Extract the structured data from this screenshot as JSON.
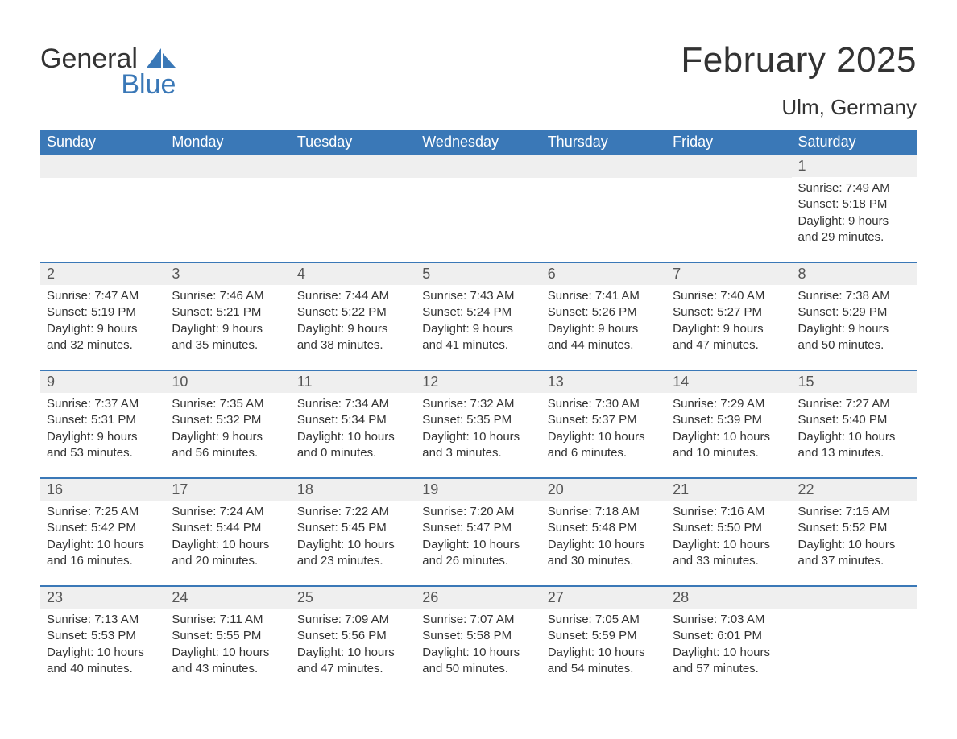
{
  "brand": {
    "part1": "General",
    "part2": "Blue",
    "accent_color": "#3a78b7"
  },
  "title": "February 2025",
  "location": "Ulm, Germany",
  "colors": {
    "header_bg": "#3a78b7",
    "header_text": "#ffffff",
    "daynum_bg": "#efefef",
    "text": "#333333",
    "page_bg": "#ffffff",
    "divider": "#3a78b7"
  },
  "typography": {
    "title_fontsize": 44,
    "location_fontsize": 26,
    "header_fontsize": 18,
    "daynum_fontsize": 18,
    "info_fontsize": 15,
    "logo_fontsize": 34
  },
  "day_names": [
    "Sunday",
    "Monday",
    "Tuesday",
    "Wednesday",
    "Thursday",
    "Friday",
    "Saturday"
  ],
  "weeks": [
    [
      null,
      null,
      null,
      null,
      null,
      null,
      {
        "n": "1",
        "sunrise": "Sunrise: 7:49 AM",
        "sunset": "Sunset: 5:18 PM",
        "daylight": "Daylight: 9 hours and 29 minutes."
      }
    ],
    [
      {
        "n": "2",
        "sunrise": "Sunrise: 7:47 AM",
        "sunset": "Sunset: 5:19 PM",
        "daylight": "Daylight: 9 hours and 32 minutes."
      },
      {
        "n": "3",
        "sunrise": "Sunrise: 7:46 AM",
        "sunset": "Sunset: 5:21 PM",
        "daylight": "Daylight: 9 hours and 35 minutes."
      },
      {
        "n": "4",
        "sunrise": "Sunrise: 7:44 AM",
        "sunset": "Sunset: 5:22 PM",
        "daylight": "Daylight: 9 hours and 38 minutes."
      },
      {
        "n": "5",
        "sunrise": "Sunrise: 7:43 AM",
        "sunset": "Sunset: 5:24 PM",
        "daylight": "Daylight: 9 hours and 41 minutes."
      },
      {
        "n": "6",
        "sunrise": "Sunrise: 7:41 AM",
        "sunset": "Sunset: 5:26 PM",
        "daylight": "Daylight: 9 hours and 44 minutes."
      },
      {
        "n": "7",
        "sunrise": "Sunrise: 7:40 AM",
        "sunset": "Sunset: 5:27 PM",
        "daylight": "Daylight: 9 hours and 47 minutes."
      },
      {
        "n": "8",
        "sunrise": "Sunrise: 7:38 AM",
        "sunset": "Sunset: 5:29 PM",
        "daylight": "Daylight: 9 hours and 50 minutes."
      }
    ],
    [
      {
        "n": "9",
        "sunrise": "Sunrise: 7:37 AM",
        "sunset": "Sunset: 5:31 PM",
        "daylight": "Daylight: 9 hours and 53 minutes."
      },
      {
        "n": "10",
        "sunrise": "Sunrise: 7:35 AM",
        "sunset": "Sunset: 5:32 PM",
        "daylight": "Daylight: 9 hours and 56 minutes."
      },
      {
        "n": "11",
        "sunrise": "Sunrise: 7:34 AM",
        "sunset": "Sunset: 5:34 PM",
        "daylight": "Daylight: 10 hours and 0 minutes."
      },
      {
        "n": "12",
        "sunrise": "Sunrise: 7:32 AM",
        "sunset": "Sunset: 5:35 PM",
        "daylight": "Daylight: 10 hours and 3 minutes."
      },
      {
        "n": "13",
        "sunrise": "Sunrise: 7:30 AM",
        "sunset": "Sunset: 5:37 PM",
        "daylight": "Daylight: 10 hours and 6 minutes."
      },
      {
        "n": "14",
        "sunrise": "Sunrise: 7:29 AM",
        "sunset": "Sunset: 5:39 PM",
        "daylight": "Daylight: 10 hours and 10 minutes."
      },
      {
        "n": "15",
        "sunrise": "Sunrise: 7:27 AM",
        "sunset": "Sunset: 5:40 PM",
        "daylight": "Daylight: 10 hours and 13 minutes."
      }
    ],
    [
      {
        "n": "16",
        "sunrise": "Sunrise: 7:25 AM",
        "sunset": "Sunset: 5:42 PM",
        "daylight": "Daylight: 10 hours and 16 minutes."
      },
      {
        "n": "17",
        "sunrise": "Sunrise: 7:24 AM",
        "sunset": "Sunset: 5:44 PM",
        "daylight": "Daylight: 10 hours and 20 minutes."
      },
      {
        "n": "18",
        "sunrise": "Sunrise: 7:22 AM",
        "sunset": "Sunset: 5:45 PM",
        "daylight": "Daylight: 10 hours and 23 minutes."
      },
      {
        "n": "19",
        "sunrise": "Sunrise: 7:20 AM",
        "sunset": "Sunset: 5:47 PM",
        "daylight": "Daylight: 10 hours and 26 minutes."
      },
      {
        "n": "20",
        "sunrise": "Sunrise: 7:18 AM",
        "sunset": "Sunset: 5:48 PM",
        "daylight": "Daylight: 10 hours and 30 minutes."
      },
      {
        "n": "21",
        "sunrise": "Sunrise: 7:16 AM",
        "sunset": "Sunset: 5:50 PM",
        "daylight": "Daylight: 10 hours and 33 minutes."
      },
      {
        "n": "22",
        "sunrise": "Sunrise: 7:15 AM",
        "sunset": "Sunset: 5:52 PM",
        "daylight": "Daylight: 10 hours and 37 minutes."
      }
    ],
    [
      {
        "n": "23",
        "sunrise": "Sunrise: 7:13 AM",
        "sunset": "Sunset: 5:53 PM",
        "daylight": "Daylight: 10 hours and 40 minutes."
      },
      {
        "n": "24",
        "sunrise": "Sunrise: 7:11 AM",
        "sunset": "Sunset: 5:55 PM",
        "daylight": "Daylight: 10 hours and 43 minutes."
      },
      {
        "n": "25",
        "sunrise": "Sunrise: 7:09 AM",
        "sunset": "Sunset: 5:56 PM",
        "daylight": "Daylight: 10 hours and 47 minutes."
      },
      {
        "n": "26",
        "sunrise": "Sunrise: 7:07 AM",
        "sunset": "Sunset: 5:58 PM",
        "daylight": "Daylight: 10 hours and 50 minutes."
      },
      {
        "n": "27",
        "sunrise": "Sunrise: 7:05 AM",
        "sunset": "Sunset: 5:59 PM",
        "daylight": "Daylight: 10 hours and 54 minutes."
      },
      {
        "n": "28",
        "sunrise": "Sunrise: 7:03 AM",
        "sunset": "Sunset: 6:01 PM",
        "daylight": "Daylight: 10 hours and 57 minutes."
      },
      null
    ]
  ]
}
